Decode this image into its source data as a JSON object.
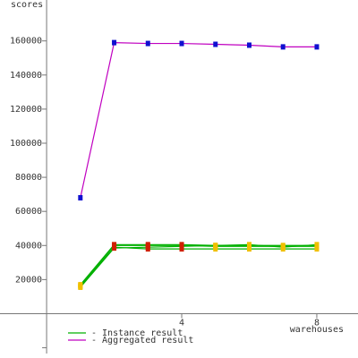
{
  "chart_data": {
    "type": "line",
    "y_label": "scores",
    "x_label": "warehouses",
    "x": [
      1,
      2,
      3,
      4,
      5,
      6,
      7,
      8
    ],
    "xlim": [
      -1.38,
      9.22
    ],
    "ylim": [
      -26000,
      184000
    ],
    "xticks": [
      4,
      8
    ],
    "yticks": [
      {
        "value": -20000,
        "label": null
      },
      20000,
      40000,
      60000,
      80000,
      100000,
      120000,
      140000,
      160000
    ],
    "series": [
      {
        "color": "#00b000",
        "marker_colors": [
          "#f0c000",
          "#d02000",
          "#d02000",
          "#d02000",
          "#f0c000",
          "#f0c000",
          "#f0c000",
          "#f0c000"
        ],
        "values": [
          17000,
          40500,
          40500,
          40500,
          40000,
          40000,
          40000,
          40000
        ]
      },
      {
        "color": "#00b000",
        "marker_colors": [
          "#f0c000",
          "#d02000",
          "#d02000",
          "#d02000",
          "#f0c000",
          "#f0c000",
          "#f0c000",
          "#f0c000"
        ],
        "values": [
          16500,
          40000,
          40000,
          40000,
          39500,
          39500,
          39500,
          39500
        ]
      },
      {
        "color": "#00b000",
        "marker_colors": [
          "#f0c000",
          "#d02000",
          "#d02000",
          "#d02000",
          "#f0c000",
          "#f0c000",
          "#f0c000",
          "#f0c000"
        ],
        "values": [
          16000,
          39000,
          38000,
          38000,
          38000,
          38000,
          38000,
          38000
        ]
      },
      {
        "color": "#00b000",
        "marker_colors": [
          "#f0c000",
          "#d02000",
          "#d02000",
          "#d02000",
          "#f0c000",
          "#f0c000",
          "#f0c000",
          "#f0c000"
        ],
        "values": [
          15500,
          38500,
          39000,
          39500,
          40000,
          40500,
          39000,
          40500
        ]
      },
      {
        "color": "#c000c0",
        "marker_colors": [
          "#1010d0",
          "#1010d0",
          "#1010d0",
          "#1010d0",
          "#1010d0",
          "#1010d0",
          "#1010d0",
          "#1010d0"
        ],
        "values": [
          68000,
          159000,
          158500,
          158500,
          158000,
          157500,
          156500,
          156500
        ]
      }
    ],
    "legend": [
      {
        "label": "- Instance result",
        "color": "#00b000"
      },
      {
        "label": "- Aggregated result",
        "color": "#c000c0"
      }
    ]
  }
}
